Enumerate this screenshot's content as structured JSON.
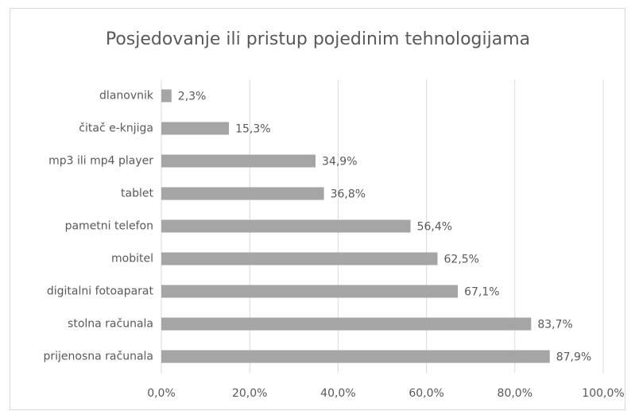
{
  "chart_data": {
    "type": "bar",
    "orientation": "horizontal",
    "title": "Posjedovanje ili pristup pojedinim tehnologijama",
    "categories": [
      "dlanovnik",
      "čitač e-knjiga",
      "mp3 ili mp4 player",
      "tablet",
      "pametni telefon",
      "mobitel",
      "digitalni fotoaparat",
      "stolna računala",
      "prijenosna računala"
    ],
    "values": [
      2.3,
      15.3,
      34.9,
      36.8,
      56.4,
      62.5,
      67.1,
      83.7,
      87.9
    ],
    "value_labels": [
      "2,3%",
      "15,3%",
      "34,9%",
      "36,8%",
      "56,4%",
      "62,5%",
      "67,1%",
      "83,7%",
      "87,9%"
    ],
    "color": "#a5a5a5",
    "xlim": [
      0,
      100
    ],
    "xticks": [
      {
        "value": 0,
        "label": "0,0%"
      },
      {
        "value": 20,
        "label": "20,0%"
      },
      {
        "value": 40,
        "label": "40,0%"
      },
      {
        "value": 60,
        "label": "60,0%"
      },
      {
        "value": 80,
        "label": "80,0%"
      },
      {
        "value": 100,
        "label": "100,0%"
      }
    ],
    "grid": true
  }
}
